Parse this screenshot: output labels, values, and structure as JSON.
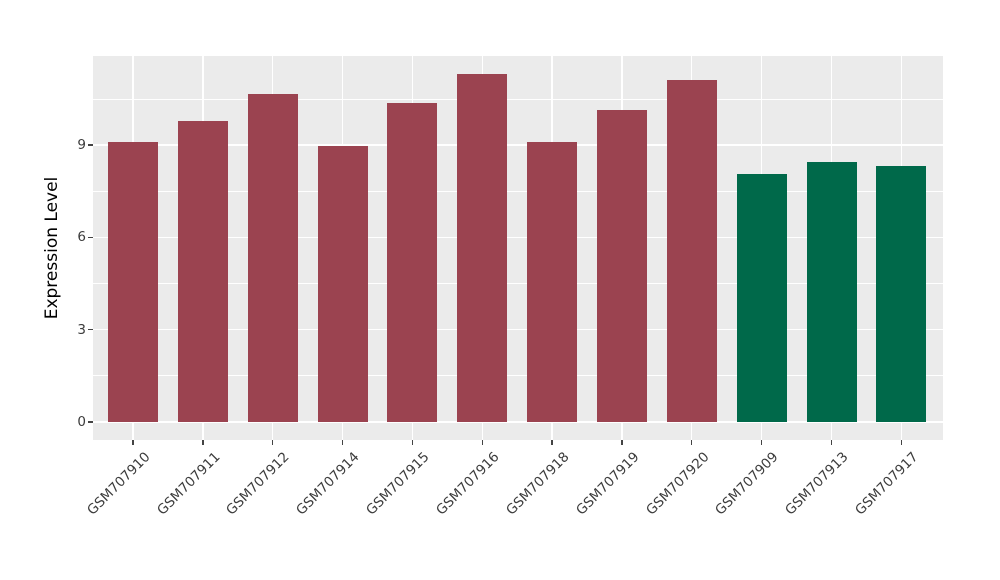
{
  "chart_data": {
    "type": "bar",
    "title": "",
    "xlabel": "",
    "ylabel": "Expression Level",
    "legend": "none",
    "grid": true,
    "panel_bg": "#EBEBEB",
    "grid_color": "#ffffff",
    "palette": {
      "maroon": "#9B4350",
      "green": "#00694A"
    },
    "y_axis": {
      "ticks": [
        0,
        3,
        6,
        9
      ],
      "minor_ticks": [
        1.5,
        4.5,
        7.5,
        10.5
      ],
      "lim": [
        -0.585,
        11.9
      ]
    },
    "categories": [
      "GSM707910",
      "GSM707911",
      "GSM707912",
      "GSM707914",
      "GSM707915",
      "GSM707916",
      "GSM707918",
      "GSM707919",
      "GSM707920",
      "GSM707909",
      "GSM707913",
      "GSM707917"
    ],
    "values": [
      9.1,
      9.79,
      10.66,
      8.98,
      10.37,
      11.32,
      9.11,
      10.15,
      11.11,
      8.06,
      8.46,
      8.32
    ],
    "bars": [
      {
        "label": "GSM707910",
        "value": 9.1,
        "color": "#9B4350"
      },
      {
        "label": "GSM707911",
        "value": 9.79,
        "color": "#9B4350"
      },
      {
        "label": "GSM707912",
        "value": 10.66,
        "color": "#9B4350"
      },
      {
        "label": "GSM707914",
        "value": 8.98,
        "color": "#9B4350"
      },
      {
        "label": "GSM707915",
        "value": 10.37,
        "color": "#9B4350"
      },
      {
        "label": "GSM707916",
        "value": 11.32,
        "color": "#9B4350"
      },
      {
        "label": "GSM707918",
        "value": 9.11,
        "color": "#9B4350"
      },
      {
        "label": "GSM707919",
        "value": 10.15,
        "color": "#9B4350"
      },
      {
        "label": "GSM707920",
        "value": 11.11,
        "color": "#9B4350"
      },
      {
        "label": "GSM707909",
        "value": 8.06,
        "color": "#00694A"
      },
      {
        "label": "GSM707913",
        "value": 8.46,
        "color": "#00694A"
      },
      {
        "label": "GSM707917",
        "value": 8.32,
        "color": "#00694A"
      }
    ]
  }
}
